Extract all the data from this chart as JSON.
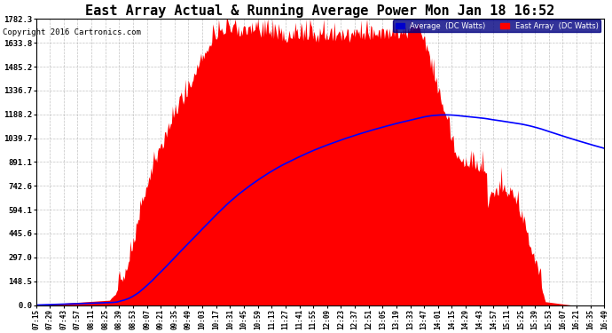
{
  "title": "East Array Actual & Running Average Power Mon Jan 18 16:52",
  "copyright": "Copyright 2016 Cartronics.com",
  "legend_labels": [
    "Average  (DC Watts)",
    "East Array  (DC Watts)"
  ],
  "legend_colors": [
    "#0000ff",
    "#ff0000"
  ],
  "y_ticks": [
    0.0,
    148.5,
    297.0,
    445.6,
    594.1,
    742.6,
    891.1,
    1039.7,
    1188.2,
    1336.7,
    1485.2,
    1633.8,
    1782.3
  ],
  "ymax": 1782.3,
  "ymin": 0.0,
  "background_color": "#ffffff",
  "plot_bg_color": "#ffffff",
  "grid_color": "#aaaaaa",
  "title_fontsize": 11,
  "copyright_fontsize": 6.5,
  "x_labels": [
    "07:15",
    "07:29",
    "07:43",
    "07:57",
    "08:11",
    "08:25",
    "08:39",
    "08:53",
    "09:07",
    "09:21",
    "09:35",
    "09:49",
    "10:03",
    "10:17",
    "10:31",
    "10:45",
    "10:59",
    "11:13",
    "11:27",
    "11:41",
    "11:55",
    "12:09",
    "12:23",
    "12:37",
    "12:51",
    "13:05",
    "13:19",
    "13:33",
    "13:47",
    "14:01",
    "14:15",
    "14:29",
    "14:43",
    "14:57",
    "15:11",
    "15:25",
    "15:39",
    "15:53",
    "16:07",
    "16:21",
    "16:35",
    "16:49"
  ],
  "n_points": 580,
  "peak_value": 1720,
  "noise_std": 80,
  "seed": 12
}
